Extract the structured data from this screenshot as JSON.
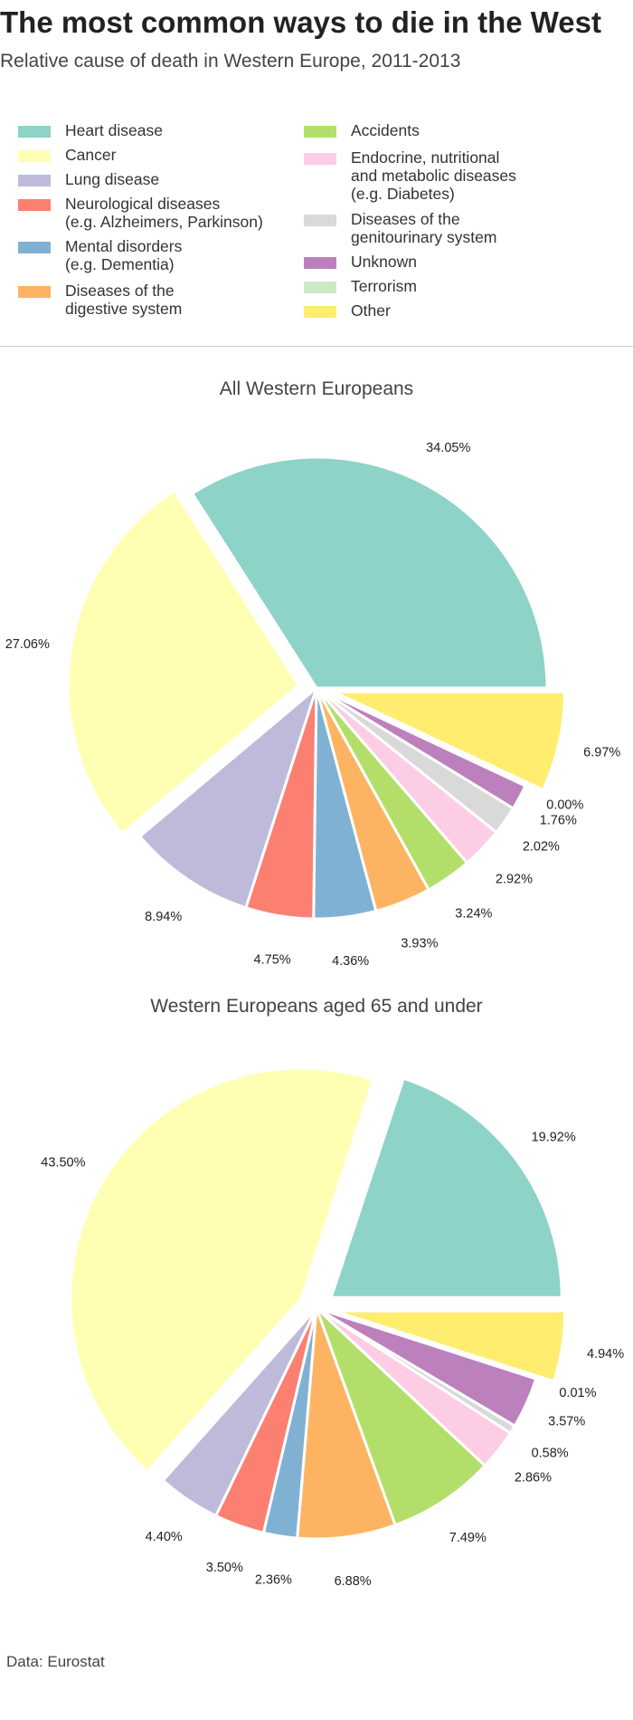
{
  "title": "The most common ways to die in the West",
  "subtitle": "Relative cause of death in Western Europe, 2011-2013",
  "source": "Data: Eurostat",
  "colors": [
    "#8dd3c7",
    "#ffffb3",
    "#bebada",
    "#fb8072",
    "#80b1d3",
    "#fdb462",
    "#b3de69",
    "#fccde5",
    "#d9d9d9",
    "#bc80bd",
    "#ccebc5",
    "#ffed6f"
  ],
  "legend": [
    {
      "label": "Heart disease"
    },
    {
      "label": "Cancer"
    },
    {
      "label": "Lung disease"
    },
    {
      "label": "Neurological diseases\n(e.g. Alzheimers, Parkinson)"
    },
    {
      "label": "Mental disorders\n(e.g. Dementia)"
    },
    {
      "label": "Diseases of the\ndigestive system"
    },
    {
      "label": "Accidents"
    },
    {
      "label": "Endocrine, nutritional\n and metabolic diseases\n(e.g. Diabetes)"
    },
    {
      "label": "Diseases of the\ngenitourinary system"
    },
    {
      "label": "Unknown"
    },
    {
      "label": "Terrorism"
    },
    {
      "label": "Other"
    }
  ],
  "chart_data": [
    {
      "type": "pie",
      "title": "All Western Europeans",
      "categories": [
        "Heart disease",
        "Cancer",
        "Lung disease",
        "Neurological diseases",
        "Mental disorders",
        "Diseases of the digestive system",
        "Accidents",
        "Endocrine, nutritional and metabolic diseases",
        "Diseases of the genitourinary system",
        "Unknown",
        "Terrorism",
        "Other"
      ],
      "values": [
        34.05,
        27.06,
        8.94,
        4.75,
        4.36,
        3.93,
        3.24,
        2.92,
        2.02,
        1.76,
        0.0,
        6.97
      ],
      "labels": [
        "34.05%",
        "27.06%",
        "8.94%",
        "4.75%",
        "4.36%",
        "3.93%",
        "3.24%",
        "2.92%",
        "2.02%",
        "1.76%",
        "0.00%",
        "6.97%"
      ],
      "explode": [
        0,
        1,
        0,
        0,
        0,
        0,
        0,
        0,
        0,
        0,
        0,
        1
      ]
    },
    {
      "type": "pie",
      "title": "Western Europeans aged 65 and under",
      "categories": [
        "Heart disease",
        "Cancer",
        "Lung disease",
        "Neurological diseases",
        "Mental disorders",
        "Diseases of the digestive system",
        "Accidents",
        "Endocrine, nutritional and metabolic diseases",
        "Diseases of the genitourinary system",
        "Unknown",
        "Terrorism",
        "Other"
      ],
      "values": [
        19.92,
        43.5,
        4.4,
        3.5,
        2.36,
        6.88,
        7.49,
        2.86,
        0.58,
        3.57,
        0.01,
        4.94
      ],
      "labels": [
        "19.92%",
        "43.50%",
        "4.40%",
        "3.50%",
        "2.36%",
        "6.88%",
        "7.49%",
        "2.86%",
        "0.58%",
        "3.57%",
        "0.01%",
        "4.94%"
      ],
      "explode": [
        1,
        1,
        0,
        0,
        0,
        0,
        0,
        0,
        0,
        0,
        0,
        1
      ]
    }
  ]
}
